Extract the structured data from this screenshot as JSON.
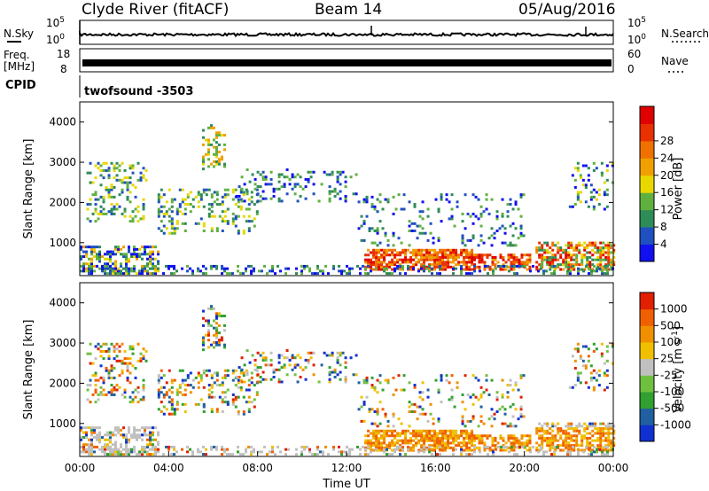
{
  "header": {
    "station": "Clyde River (fitACF)",
    "beam": "Beam 14",
    "date": "05/Aug/2016"
  },
  "params": {
    "nsky_label": "N.Sky",
    "nsearch_label": "N.Search",
    "noise_ticks": [
      "10^5",
      "10^0"
    ],
    "freq_label_1": "Freq.",
    "freq_label_2": "[MHz]",
    "freq_ticks": [
      "18",
      "8"
    ],
    "nave_label": "Nave",
    "nave_ticks": [
      "60",
      "0"
    ],
    "cpid_label": "CPID",
    "cpid_value": "twofsound -3503"
  },
  "colors": {
    "power_scale": [
      "#1010f0",
      "#2050c0",
      "#2e8c58",
      "#60b040",
      "#e8d800",
      "#f0a000",
      "#f07000",
      "#e83000",
      "#e00000"
    ],
    "velocity_scale": [
      "#1030d0",
      "#2060a0",
      "#30a030",
      "#70c040",
      "#c0c0c0",
      "#f0c000",
      "#f09000",
      "#f06000",
      "#e02000"
    ]
  },
  "chart_data": [
    {
      "type": "heatmap",
      "panel": "power",
      "ylabel": "Slant Range [km]",
      "y_ticks": [
        "1000",
        "2000",
        "3000",
        "4000"
      ],
      "ylim": [
        180,
        4500
      ],
      "colorbar_label": "Power [dB]",
      "colorbar_ticks": [
        "4",
        "8",
        "12",
        "16",
        "20",
        "24",
        "28"
      ],
      "colorbar_range": [
        0,
        30
      ]
    },
    {
      "type": "heatmap",
      "panel": "velocity",
      "ylabel": "Slant Range [km]",
      "y_ticks": [
        "1000",
        "2000",
        "3000",
        "4000"
      ],
      "ylim": [
        180,
        4500
      ],
      "colorbar_label": "Velocity [m s^-1]",
      "colorbar_ticks": [
        "1000",
        "500",
        "100",
        "25",
        "-25",
        "-100",
        "-500",
        "-1000"
      ],
      "xlabel": "Time UT",
      "x_ticks": [
        "00:00",
        "04:00",
        "08:00",
        "12:00",
        "16:00",
        "20:00",
        "00:00"
      ],
      "xlim_hours": [
        0,
        24
      ]
    }
  ]
}
